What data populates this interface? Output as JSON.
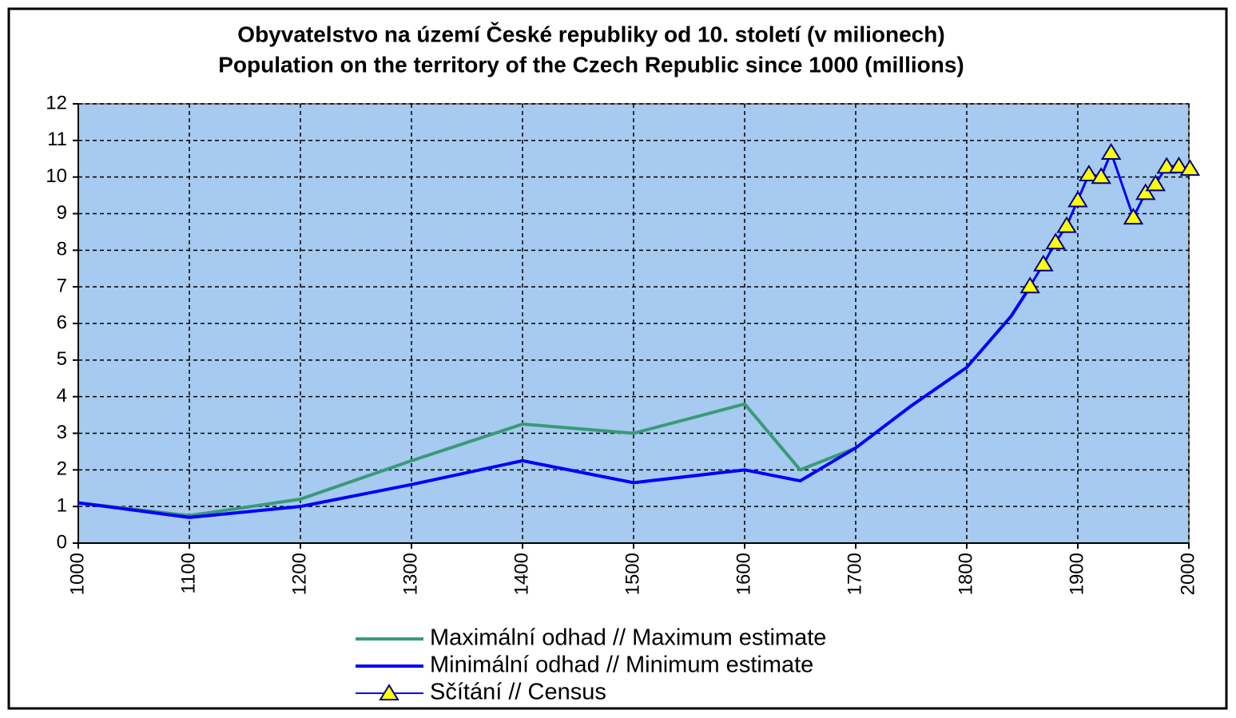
{
  "chart_data": {
    "type": "line",
    "title": [
      "Obyvatelstvo na území České republiky od 10. století (v milionech)",
      "Population on the territory of the Czech Republic since 1000 (millions)"
    ],
    "xlim": [
      1000,
      2000
    ],
    "xticks": [
      1000,
      1100,
      1200,
      1300,
      1400,
      1500,
      1600,
      1700,
      1800,
      1900,
      2000
    ],
    "ylim": [
      0,
      12
    ],
    "yticks": [
      0,
      1,
      2,
      3,
      4,
      5,
      6,
      7,
      8,
      9,
      10,
      11,
      12
    ],
    "grid": true,
    "background": "#a6caf0",
    "series": [
      {
        "name": "Maximální odhad // Maximum estimate",
        "color": "#3a9a78",
        "marker": false,
        "x": [
          1000,
          1100,
          1200,
          1300,
          1400,
          1500,
          1600,
          1650,
          1700
        ],
        "values": [
          1.1,
          0.75,
          1.2,
          2.25,
          3.25,
          3.0,
          3.8,
          2.0,
          2.6
        ]
      },
      {
        "name": "Minimální odhad // Minimum estimate",
        "color": "#0000ff",
        "marker": false,
        "x": [
          1000,
          1100,
          1200,
          1300,
          1400,
          1500,
          1600,
          1650,
          1700,
          1750,
          1800,
          1840,
          1857
        ],
        "values": [
          1.1,
          0.7,
          1.0,
          1.6,
          2.25,
          1.65,
          2.0,
          1.7,
          2.6,
          3.75,
          4.8,
          6.2,
          7.0
        ]
      },
      {
        "name": "Sčítání // Census",
        "color": "#0000ff",
        "marker": true,
        "marker_color": "#ffff00",
        "x": [
          1857,
          1869,
          1880,
          1890,
          1900,
          1910,
          1921,
          1930,
          1950,
          1961,
          1970,
          1980,
          1991,
          2001
        ],
        "values": [
          7.02,
          7.62,
          8.22,
          8.67,
          9.37,
          10.08,
          10.01,
          10.67,
          8.9,
          9.57,
          9.81,
          10.29,
          10.3,
          10.23
        ]
      }
    ]
  }
}
